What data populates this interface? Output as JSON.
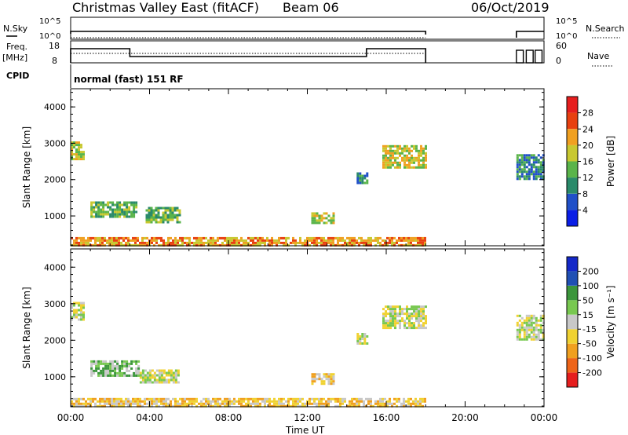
{
  "header": {
    "title": "Christmas Valley East (fitACF)",
    "beam": "Beam 06",
    "date": "06/Oct/2019"
  },
  "top_panels": {
    "nsky_label": "N.Sky",
    "nsearch_label": "N.Search",
    "nsky_ticks": [
      "10^5",
      "10^0"
    ],
    "nsearch_ticks": [
      "10^5",
      "10^0"
    ],
    "freq_label_line1": "Freq.",
    "freq_label_line2": "[MHz]",
    "freq_ticks": [
      "18",
      "8"
    ],
    "nave_label": "Nave",
    "nave_ticks": [
      "60",
      "0"
    ],
    "cpid_label": "CPID",
    "cpid_value": "normal (fast) 151 RF"
  },
  "colors": {
    "power": [
      "#0a1ee6",
      "#2050c8",
      "#2a8a6a",
      "#5ab44a",
      "#c8c830",
      "#f0a020",
      "#e84010",
      "#e61e1e"
    ],
    "velocity": [
      "#e61e1e",
      "#ee6418",
      "#f0a020",
      "#f0d232",
      "#c8c8c8",
      "#78c850",
      "#3c963c",
      "#2050b4",
      "#1428c8"
    ]
  },
  "chart_data": [
    {
      "type": "heatmap",
      "name": "power",
      "ylabel": "Slant Range [km]",
      "y_ticks": [
        "1000",
        "2000",
        "3000",
        "4000"
      ],
      "y_values": [
        1000,
        2000,
        3000,
        4000
      ],
      "ylim": [
        180,
        4500
      ],
      "xlim": [
        0,
        24
      ],
      "colorbar_label": "Power [dB]",
      "colorbar_ticks": [
        "4",
        "8",
        "12",
        "16",
        "20",
        "24",
        "28"
      ],
      "colorbar_range": [
        0,
        32
      ],
      "regions": [
        {
          "t0": 0.0,
          "t1": 0.7,
          "r0": 2550,
          "r1": 3050,
          "level": 4
        },
        {
          "t0": 1.0,
          "t1": 3.3,
          "r0": 950,
          "r1": 1400,
          "level": 3
        },
        {
          "t0": 3.8,
          "t1": 5.5,
          "r0": 850,
          "r1": 1250,
          "level": 3
        },
        {
          "t0": 12.2,
          "t1": 13.3,
          "r0": 800,
          "r1": 1100,
          "level": 4
        },
        {
          "t0": 14.5,
          "t1": 15.0,
          "r0": 1900,
          "r1": 2200,
          "level": 2
        },
        {
          "t0": 15.8,
          "t1": 18.0,
          "r0": 2350,
          "r1": 2950,
          "level": 4
        },
        {
          "t0": 22.6,
          "t1": 24.0,
          "r0": 2000,
          "r1": 2700,
          "level": 2
        },
        {
          "t0": 0.0,
          "t1": 18.0,
          "r0": 180,
          "r1": 420,
          "level": 5
        }
      ]
    },
    {
      "type": "heatmap",
      "name": "velocity",
      "ylabel": "Slant Range [km]",
      "y_ticks": [
        "1000",
        "2000",
        "3000",
        "4000"
      ],
      "y_values": [
        1000,
        2000,
        3000,
        4000
      ],
      "ylim": [
        180,
        4500
      ],
      "xlim": [
        0,
        24
      ],
      "xlabel": "Time UT",
      "x_ticks": [
        "00:00",
        "04:00",
        "08:00",
        "12:00",
        "16:00",
        "20:00",
        "00:00"
      ],
      "x_values": [
        0,
        4,
        8,
        12,
        16,
        20,
        24
      ],
      "colorbar_label": "Velocity [m s⁻¹]",
      "colorbar_ticks": [
        "-200",
        "-100",
        "-50",
        "-15",
        "15",
        "50",
        "100",
        "200"
      ],
      "regions": [
        {
          "t0": 0.0,
          "t1": 0.7,
          "r0": 2550,
          "r1": 3050,
          "level": 4
        },
        {
          "t0": 1.0,
          "t1": 3.5,
          "r0": 1000,
          "r1": 1450,
          "level": 5
        },
        {
          "t0": 3.5,
          "t1": 5.5,
          "r0": 850,
          "r1": 1200,
          "level": 4
        },
        {
          "t0": 12.2,
          "t1": 13.3,
          "r0": 800,
          "r1": 1100,
          "level": 3
        },
        {
          "t0": 14.5,
          "t1": 15.0,
          "r0": 1900,
          "r1": 2200,
          "level": 4
        },
        {
          "t0": 15.8,
          "t1": 18.0,
          "r0": 2350,
          "r1": 2950,
          "level": 4
        },
        {
          "t0": 22.6,
          "t1": 24.0,
          "r0": 2000,
          "r1": 2700,
          "level": 4
        },
        {
          "t0": 0.0,
          "t1": 18.0,
          "r0": 180,
          "r1": 420,
          "level": 3
        }
      ]
    }
  ]
}
